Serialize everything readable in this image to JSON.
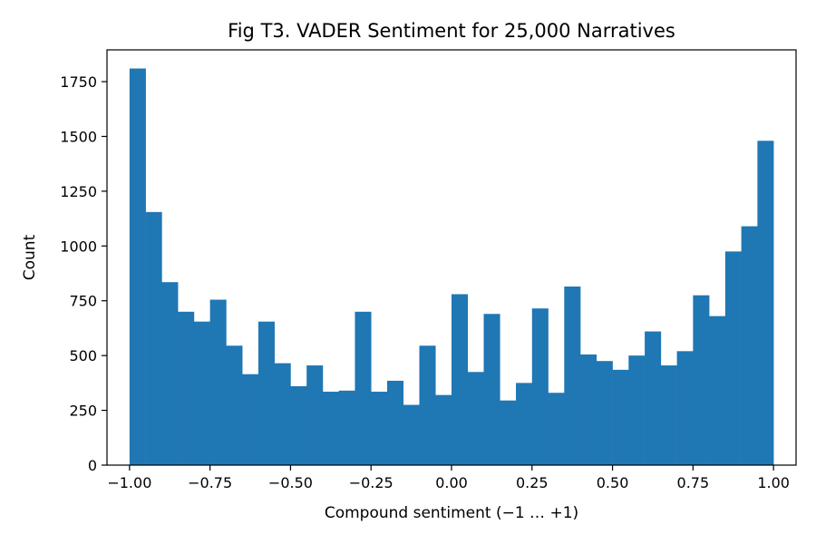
{
  "chart_data": {
    "type": "bar",
    "title": "Fig T3. VADER Sentiment for 25,000 Narratives",
    "xlabel": "Compound sentiment (−1 … +1)",
    "ylabel": "Count",
    "xlim": [
      -1.07,
      1.07
    ],
    "ylim": [
      0,
      1895
    ],
    "bin_range": [
      -1.0,
      1.0
    ],
    "bin_count": 40,
    "values": [
      1810,
      1155,
      835,
      700,
      655,
      755,
      545,
      415,
      655,
      465,
      360,
      455,
      335,
      340,
      700,
      335,
      385,
      275,
      545,
      320,
      780,
      425,
      690,
      295,
      375,
      715,
      330,
      815,
      505,
      475,
      435,
      500,
      610,
      455,
      520,
      775,
      680,
      975,
      1090,
      1480
    ],
    "x_ticks": [
      -1.0,
      -0.75,
      -0.5,
      -0.25,
      0.0,
      0.25,
      0.5,
      0.75,
      1.0
    ],
    "x_tick_labels": [
      "−1.00",
      "−0.75",
      "−0.50",
      "−0.25",
      "0.00",
      "0.25",
      "0.50",
      "0.75",
      "1.00"
    ],
    "y_ticks": [
      0,
      250,
      500,
      750,
      1000,
      1250,
      1500,
      1750
    ],
    "y_tick_labels": [
      "0",
      "250",
      "500",
      "750",
      "1000",
      "1250",
      "1500",
      "1750"
    ],
    "bar_color": "#1f77b4",
    "grid": false,
    "legend": "none"
  }
}
